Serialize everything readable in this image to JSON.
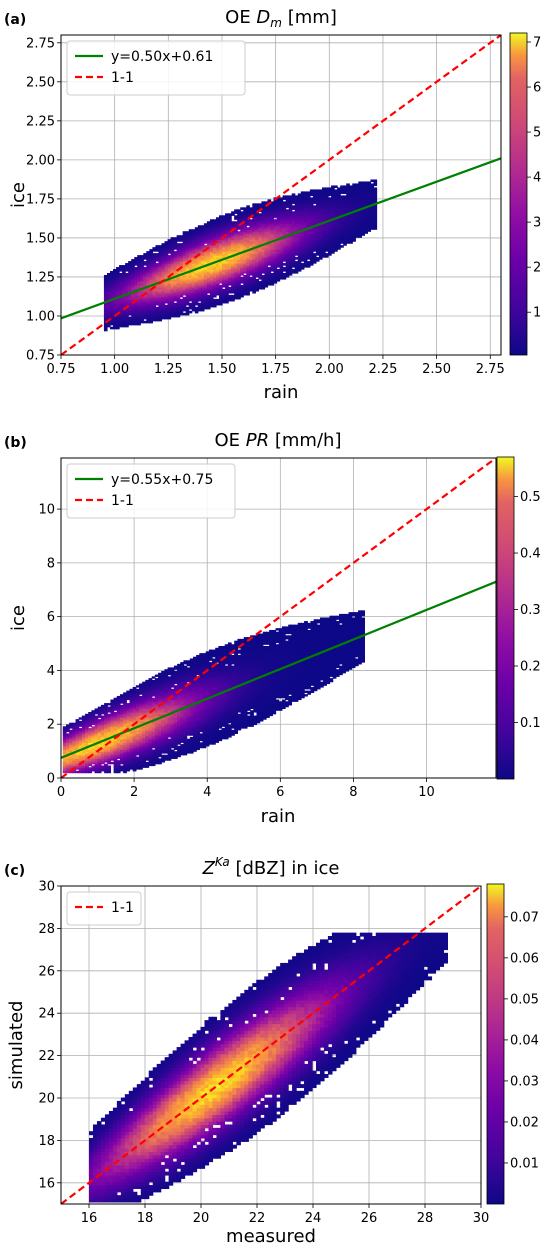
{
  "chart_data": [
    {
      "type": "heatmap",
      "panel_label": "(a)",
      "title_prefix": "OE ",
      "title_var": "D",
      "title_sub": "m",
      "title_sup": "",
      "title_suffix": " [mm]",
      "xlabel": "rain",
      "ylabel": "ice",
      "xlim": [
        0.75,
        2.8
      ],
      "ylim": [
        0.75,
        2.8
      ],
      "xticks": [
        "0.75",
        "1.00",
        "1.25",
        "1.50",
        "1.75",
        "2.00",
        "2.25",
        "2.50",
        "2.75"
      ],
      "yticks": [
        "0.75",
        "1.00",
        "1.25",
        "1.50",
        "1.75",
        "2.00",
        "2.25",
        "2.50",
        "2.75"
      ],
      "grid": true,
      "legend_position": "top-left",
      "series": [
        {
          "name": "y=0.50x+0.61",
          "kind": "fit",
          "slope": 0.5,
          "intercept": 0.61,
          "color": "#008000"
        },
        {
          "name": "1-1",
          "kind": "identity",
          "slope": 1,
          "intercept": 0,
          "color": "#ff0000"
        }
      ],
      "density": {
        "x_range": [
          0.95,
          2.22
        ],
        "y_range": [
          0.88,
          1.9
        ],
        "center": [
          1.45,
          1.33
        ],
        "peak_slope": 0.5
      },
      "colorbar": {
        "min": 0.05,
        "max": 7.2,
        "ticks": [
          "1",
          "2",
          "3",
          "4",
          "5",
          "6",
          "7"
        ],
        "tick_values": [
          1,
          2,
          3,
          4,
          5,
          6,
          7
        ],
        "colormap": "plasma"
      }
    },
    {
      "type": "heatmap",
      "panel_label": "(b)",
      "title_prefix": "OE ",
      "title_var": "PR",
      "title_sub": "",
      "title_sup": "",
      "title_suffix": " [mm/h]",
      "xlabel": "rain",
      "ylabel": "ice",
      "xlim": [
        0,
        11.9
      ],
      "ylim": [
        0,
        11.9
      ],
      "xticks": [
        "0",
        "2",
        "4",
        "6",
        "8",
        "10"
      ],
      "yticks": [
        "0",
        "2",
        "4",
        "6",
        "8",
        "10"
      ],
      "grid": true,
      "legend_position": "top-left",
      "series": [
        {
          "name": "y=0.55x+0.75",
          "kind": "fit",
          "slope": 0.55,
          "intercept": 0.75,
          "color": "#008000"
        },
        {
          "name": "1-1",
          "kind": "identity",
          "slope": 1,
          "intercept": 0,
          "color": "#ff0000"
        }
      ],
      "density": {
        "x_range": [
          0.05,
          8.3
        ],
        "y_range": [
          0.2,
          6.5
        ],
        "center": [
          1.0,
          1.2
        ],
        "peak_slope": 0.55
      },
      "colorbar": {
        "min": 0.0,
        "max": 0.57,
        "ticks": [
          "0.1",
          "0.2",
          "0.3",
          "0.4",
          "0.5"
        ],
        "tick_values": [
          0.1,
          0.2,
          0.3,
          0.4,
          0.5
        ],
        "colormap": "plasma"
      }
    },
    {
      "type": "heatmap",
      "panel_label": "(c)",
      "title_prefix": "",
      "title_var": "Z",
      "title_sub": "",
      "title_sup": "Ka",
      "title_suffix": " [dBZ] in ice",
      "xlabel": "measured",
      "ylabel": "simulated",
      "xlim": [
        15,
        30
      ],
      "ylim": [
        15,
        30
      ],
      "xticks": [
        "16",
        "18",
        "20",
        "22",
        "24",
        "26",
        "28",
        "30"
      ],
      "yticks": [
        "16",
        "18",
        "20",
        "22",
        "24",
        "26",
        "28",
        "30"
      ],
      "grid": true,
      "legend_position": "top-left",
      "series": [
        {
          "name": "1-1",
          "kind": "identity",
          "slope": 1,
          "intercept": 0,
          "color": "#ff0000"
        }
      ],
      "density": {
        "x_range": [
          16.0,
          28.8
        ],
        "y_range": [
          15.1,
          27.8
        ],
        "center": [
          20.5,
          20.5
        ],
        "peak_slope": 0.95
      },
      "colorbar": {
        "min": 0.0,
        "max": 0.078,
        "ticks": [
          "0.01",
          "0.02",
          "0.03",
          "0.04",
          "0.05",
          "0.06",
          "0.07"
        ],
        "tick_values": [
          0.01,
          0.02,
          0.03,
          0.04,
          0.05,
          0.06,
          0.07
        ],
        "colormap": "plasma"
      }
    }
  ]
}
